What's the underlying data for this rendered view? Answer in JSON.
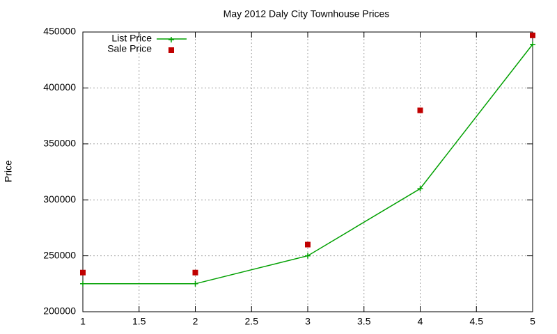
{
  "chart_data": {
    "type": "line",
    "title": "May 2012 Daly City Townhouse Prices",
    "y_label": "Price",
    "x": [
      1,
      2,
      3,
      4,
      5
    ],
    "series": [
      {
        "name": "List Price",
        "color": "#00a000",
        "line": true,
        "marker": "plus",
        "values": [
          225000,
          225000,
          250000,
          310000,
          439000
        ]
      },
      {
        "name": "Sale Price",
        "color": "#c00000",
        "line": false,
        "marker": "square",
        "values": [
          235000,
          235000,
          260000,
          380000,
          447000
        ]
      }
    ],
    "xlim": [
      1,
      5
    ],
    "xticks": [
      1,
      1.5,
      2,
      2.5,
      3,
      3.5,
      4,
      4.5,
      5
    ],
    "ylim": [
      200000,
      450000
    ],
    "yticks": [
      200000,
      250000,
      300000,
      350000,
      400000,
      450000
    ],
    "grid": true,
    "legend": "top-left"
  }
}
